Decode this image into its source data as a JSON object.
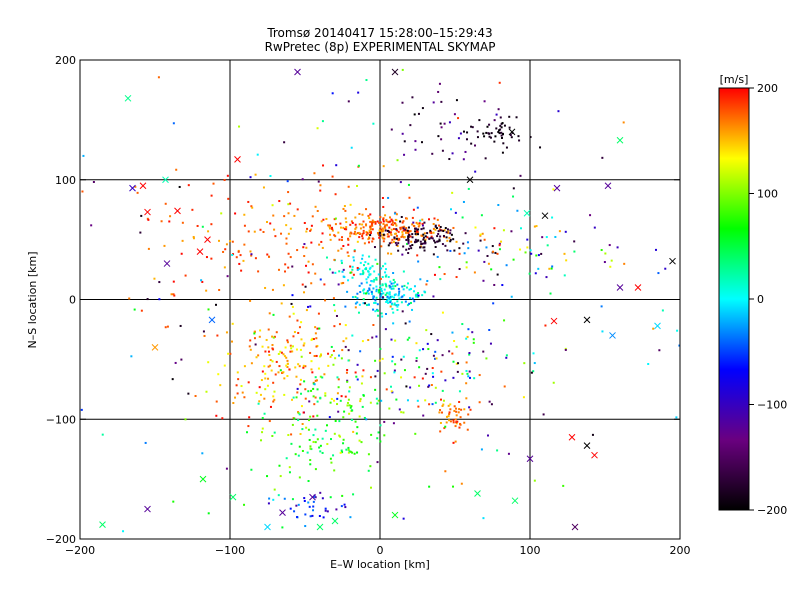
{
  "chart_data": {
    "type": "scatter",
    "title": "Tromsø 20140417 15:28:00–15:29:43",
    "subtitle": "RwPretec (8p) EXPERIMENTAL SKYMAP",
    "xlabel": "E–W location [km]",
    "ylabel": "N–S location [km]",
    "xlim": [
      -200,
      200
    ],
    "ylim": [
      -200,
      200
    ],
    "x_ticks": [
      -200,
      -100,
      0,
      100,
      200
    ],
    "y_ticks": [
      -200,
      -100,
      0,
      100,
      200
    ],
    "x_tick_labels": [
      "−200",
      "−100",
      "0",
      "100",
      "200"
    ],
    "y_tick_labels": [
      "−200",
      "−100",
      "0",
      "100",
      "200"
    ],
    "grid": true,
    "grid_lines_x": [
      -100,
      0,
      100
    ],
    "grid_lines_y": [
      -100,
      0,
      100
    ],
    "markers": "small dots and x symbols",
    "colorbar": {
      "label": "[m/s]",
      "range": [
        -200,
        200
      ],
      "ticks": [
        200,
        100,
        0,
        -100,
        -200
      ],
      "tick_labels": [
        "200",
        "100",
        "0",
        "−100",
        "−200"
      ],
      "colormap": [
        "#000000",
        "#6a0080",
        "#0000ff",
        "#00ffff",
        "#00ff00",
        "#ffff00",
        "#ff0000"
      ],
      "placement": "right"
    },
    "clusters": [
      {
        "name": "",
        "x": 0,
        "y": 58,
        "sx": 22,
        "sy": 6,
        "n": 260,
        "vmin": 150,
        "vmax": 200
      },
      {
        "name": "",
        "x": 28,
        "y": 52,
        "sx": 14,
        "sy": 6,
        "n": 120,
        "vmin": -200,
        "vmax": -160
      },
      {
        "name": "",
        "x": 5,
        "y": 5,
        "sx": 13,
        "sy": 8,
        "n": 160,
        "vmin": -40,
        "vmax": 40
      },
      {
        "name": "",
        "x": -12,
        "y": 25,
        "sx": 10,
        "sy": 6,
        "n": 60,
        "vmin": -20,
        "vmax": 30
      },
      {
        "name": "",
        "x": 80,
        "y": 140,
        "sx": 9,
        "sy": 7,
        "n": 45,
        "vmin": -200,
        "vmax": -170
      },
      {
        "name": "",
        "x": 45,
        "y": 140,
        "sx": 20,
        "sy": 15,
        "n": 40,
        "vmin": -200,
        "vmax": -100
      },
      {
        "name": "",
        "x": 50,
        "y": -95,
        "sx": 5,
        "sy": 8,
        "n": 45,
        "vmin": 150,
        "vmax": 200
      },
      {
        "name": "",
        "x": -60,
        "y": -55,
        "sx": 25,
        "sy": 25,
        "n": 190,
        "vmin": 120,
        "vmax": 200
      },
      {
        "name": "",
        "x": -30,
        "y": -110,
        "sx": 22,
        "sy": 30,
        "n": 150,
        "vmin": 20,
        "vmax": 120
      },
      {
        "name": "",
        "x": -50,
        "y": -175,
        "sx": 15,
        "sy": 8,
        "n": 35,
        "vmin": -120,
        "vmax": 0
      },
      {
        "name": "",
        "x": -70,
        "y": 45,
        "sx": 45,
        "sy": 30,
        "n": 160,
        "vmin": 150,
        "vmax": 200
      },
      {
        "name": "",
        "x": 90,
        "y": 45,
        "sx": 30,
        "sy": 20,
        "n": 70,
        "vmin": -200,
        "vmax": 200
      },
      {
        "name": "",
        "x": 25,
        "y": -60,
        "sx": 30,
        "sy": 20,
        "n": 100,
        "vmin": -200,
        "vmax": 200
      },
      {
        "name": "",
        "x": 0,
        "y": 0,
        "sx": 110,
        "sy": 110,
        "n": 300,
        "vmin": -200,
        "vmax": 200
      }
    ],
    "x_markers": [
      {
        "x": -168,
        "y": 168,
        "v": 30
      },
      {
        "x": -165,
        "y": 93,
        "v": -100
      },
      {
        "x": -143,
        "y": 100,
        "v": 20
      },
      {
        "x": -158,
        "y": 95,
        "v": 200
      },
      {
        "x": -155,
        "y": 73,
        "v": 200
      },
      {
        "x": -135,
        "y": 74,
        "v": 200
      },
      {
        "x": -115,
        "y": 50,
        "v": 200
      },
      {
        "x": -142,
        "y": 30,
        "v": -120
      },
      {
        "x": -120,
        "y": 40,
        "v": 200
      },
      {
        "x": -95,
        "y": 117,
        "v": 200
      },
      {
        "x": 10,
        "y": 190,
        "v": -180
      },
      {
        "x": -55,
        "y": 190,
        "v": -120
      },
      {
        "x": 88,
        "y": 140,
        "v": -200
      },
      {
        "x": 160,
        "y": 133,
        "v": 40
      },
      {
        "x": 152,
        "y": 95,
        "v": -120
      },
      {
        "x": 118,
        "y": 93,
        "v": -120
      },
      {
        "x": 110,
        "y": 70,
        "v": -200
      },
      {
        "x": 98,
        "y": 72,
        "v": 20
      },
      {
        "x": 195,
        "y": 32,
        "v": -200
      },
      {
        "x": 160,
        "y": 10,
        "v": -120
      },
      {
        "x": 172,
        "y": 10,
        "v": 200
      },
      {
        "x": 185,
        "y": -22,
        "v": -10
      },
      {
        "x": 155,
        "y": -30,
        "v": -30
      },
      {
        "x": 138,
        "y": -17,
        "v": -200
      },
      {
        "x": 116,
        "y": -18,
        "v": 200
      },
      {
        "x": 128,
        "y": -115,
        "v": 200
      },
      {
        "x": 138,
        "y": -122,
        "v": -200
      },
      {
        "x": 143,
        "y": -130,
        "v": 200
      },
      {
        "x": 130,
        "y": -190,
        "v": -150
      },
      {
        "x": 60,
        "y": 100,
        "v": -200
      },
      {
        "x": -150,
        "y": -40,
        "v": 160
      },
      {
        "x": -112,
        "y": -17,
        "v": -40
      },
      {
        "x": -185,
        "y": -188,
        "v": 40
      },
      {
        "x": -155,
        "y": -175,
        "v": -120
      },
      {
        "x": -118,
        "y": -150,
        "v": 60
      },
      {
        "x": -98,
        "y": -165,
        "v": 40
      },
      {
        "x": -75,
        "y": -190,
        "v": -10
      },
      {
        "x": -65,
        "y": -178,
        "v": -120
      },
      {
        "x": -45,
        "y": -165,
        "v": -120
      },
      {
        "x": -40,
        "y": -190,
        "v": 40
      },
      {
        "x": -30,
        "y": -185,
        "v": 40
      },
      {
        "x": 10,
        "y": -180,
        "v": 60
      },
      {
        "x": 65,
        "y": -162,
        "v": 40
      },
      {
        "x": 90,
        "y": -168,
        "v": 40
      },
      {
        "x": 100,
        "y": -133,
        "v": -120
      }
    ]
  }
}
